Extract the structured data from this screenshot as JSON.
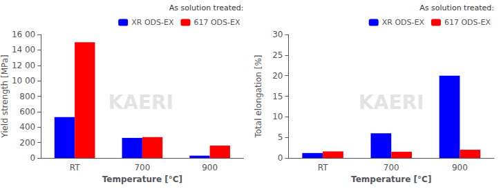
{
  "chart_data": [
    {
      "type": "bar",
      "categories": [
        "RT",
        "700",
        "900"
      ],
      "series": [
        {
          "name": "XR ODS-EX",
          "color": "#0000FF",
          "values": [
            530,
            260,
            30
          ]
        },
        {
          "name": "617 ODS-EX",
          "color": "#FF0000",
          "values": [
            1500,
            270,
            160
          ]
        }
      ],
      "xlabel": "Temperature [°C]",
      "ylabel": "Yield strength [MPa]",
      "ylim": [
        0,
        1600
      ],
      "yticks": [
        0,
        200,
        400,
        600,
        800,
        {
          "value": 1000,
          "label": "10 00"
        },
        {
          "value": 1200,
          "label": "12 00"
        },
        {
          "value": 1400,
          "label": "14 00"
        },
        {
          "value": 1600,
          "label": "16 00"
        }
      ],
      "legend": "upper right",
      "legend_title": "As solution treated:",
      "annotations": [
        {
          "text": "KAERI"
        }
      ],
      "grid": false
    },
    {
      "type": "bar",
      "categories": [
        "RT",
        "700",
        "900"
      ],
      "series": [
        {
          "name": "XR ODS-EX",
          "color": "#0000FF",
          "values": [
            1.2,
            6.0,
            20.0
          ]
        },
        {
          "name": "617 ODS-EX",
          "color": "#FF0000",
          "values": [
            1.6,
            1.5,
            2.0
          ]
        }
      ],
      "xlabel": "Temperature [°C]",
      "ylabel": "Total elongation [%]",
      "ylim": [
        0,
        30
      ],
      "yticks": [
        0,
        5,
        10,
        15,
        20,
        25,
        30
      ],
      "legend": "upper right",
      "legend_title": "As solution treated:",
      "annotations": [
        {
          "text": "KAERI"
        }
      ],
      "grid": false
    }
  ]
}
